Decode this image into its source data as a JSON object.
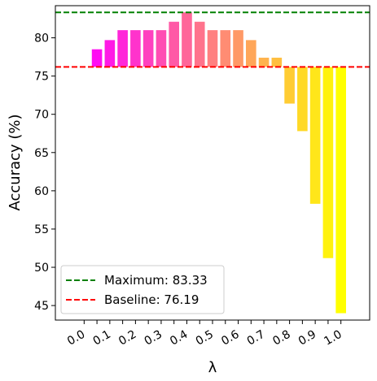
{
  "chart_data": {
    "type": "bar",
    "x": [
      0.0,
      0.05,
      0.1,
      0.15,
      0.2,
      0.25,
      0.3,
      0.35,
      0.4,
      0.45,
      0.5,
      0.55,
      0.6,
      0.65,
      0.7,
      0.75,
      0.8,
      0.85,
      0.9,
      0.95,
      1.0
    ],
    "values": [
      76.19,
      78.5,
      79.7,
      81.0,
      81.0,
      81.0,
      81.0,
      82.1,
      83.33,
      82.1,
      81.0,
      81.0,
      81.0,
      79.7,
      77.4,
      77.4,
      71.4,
      67.8,
      58.3,
      51.2,
      44.0
    ],
    "baseline": 76.19,
    "bar_colors": [
      "#ff00ff",
      "#ff0cf3",
      "#ff1ae6",
      "#ff26d9",
      "#ff33cc",
      "#ff40bf",
      "#ff4db3",
      "#ff59a6",
      "#ff6699",
      "#ff738c",
      "#ff8080",
      "#ff8c73",
      "#ff9966",
      "#ffa659",
      "#ffb34d",
      "#ffbf40",
      "#ffcc33",
      "#ffd926",
      "#ffe61a",
      "#fff20d",
      "#ffff00"
    ],
    "xlabel": "λ",
    "ylabel": "Accuracy (%)",
    "ylim": [
      43.1,
      84.2
    ],
    "yticks": [
      45,
      50,
      55,
      60,
      65,
      70,
      75,
      80
    ],
    "xticks": [
      "0.0",
      "0.1",
      "0.2",
      "0.3",
      "0.4",
      "0.5",
      "0.6",
      "0.7",
      "0.8",
      "0.9",
      "1.0"
    ],
    "hlines": [
      {
        "label": "Maximum: 83.33",
        "value": 83.33,
        "color": "#008000"
      },
      {
        "label": "Baseline: 76.19",
        "value": 76.19,
        "color": "#ff0000"
      }
    ],
    "legend_position": "lower-left",
    "grid": false
  }
}
